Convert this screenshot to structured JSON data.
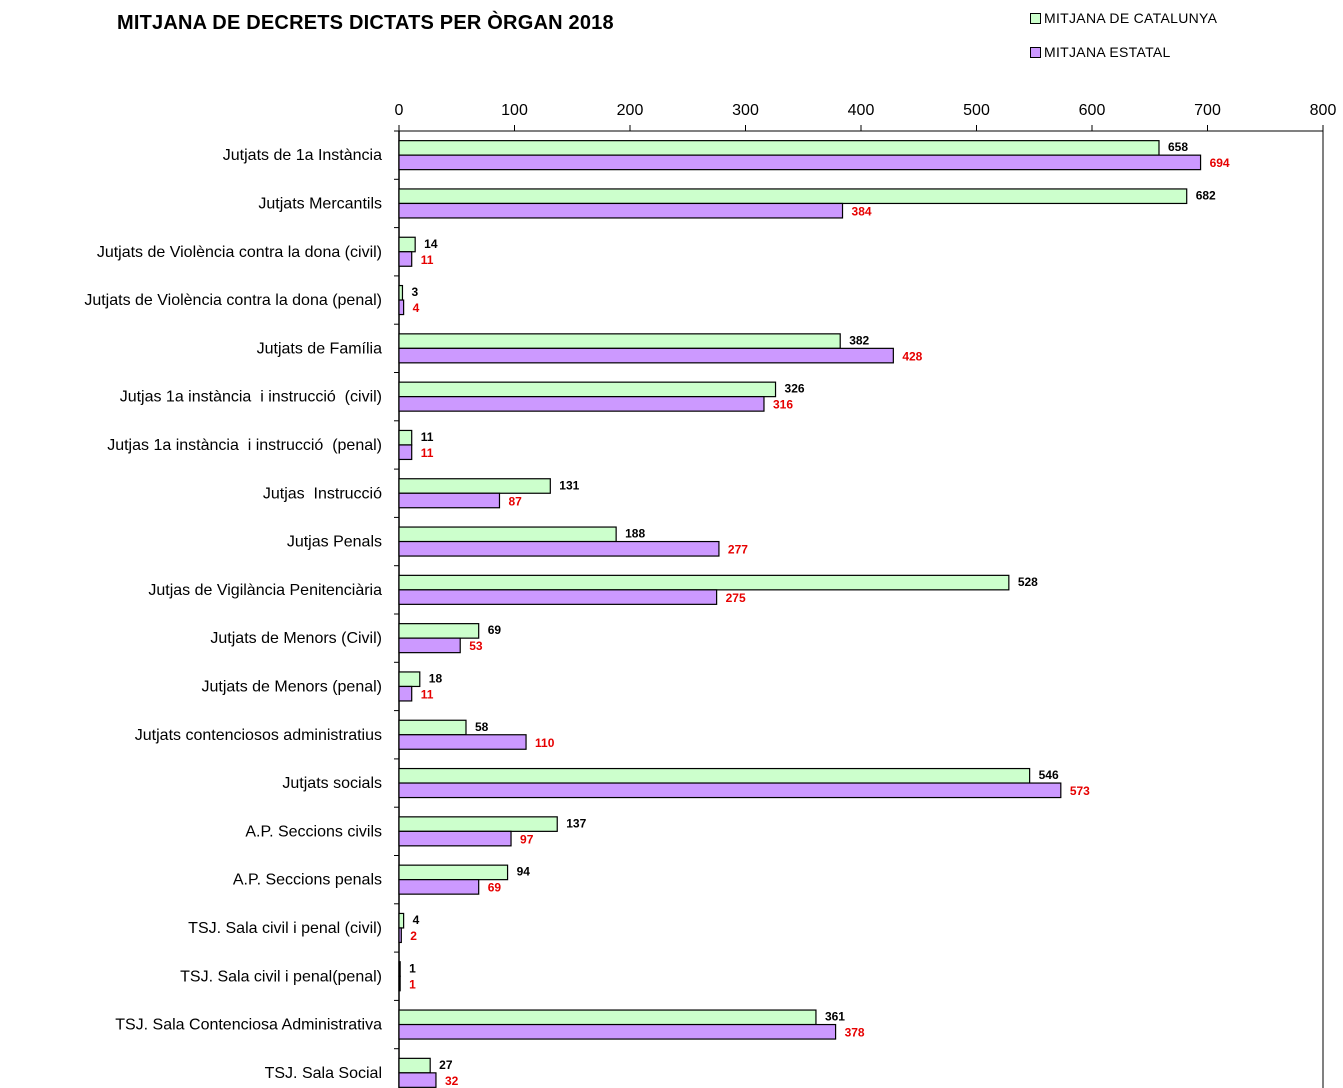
{
  "chart_data": {
    "type": "bar",
    "orientation": "horizontal",
    "title": "MITJANA DE DECRETS DICTATS PER ÒRGAN 2018",
    "xlim": [
      0,
      800
    ],
    "xticks": [
      "0",
      "100",
      "200",
      "300",
      "400",
      "500",
      "600",
      "700",
      "800"
    ],
    "legend_position": "top-right",
    "categories": [
      "Jutjats de 1a Instància",
      "Jutjats Mercantils",
      "Jutjats de Violència contra la dona (civil)",
      "Jutjats de Violència contra la dona (penal)",
      "Jutjats de Família",
      "Jutjas 1a instància  i instrucció  (civil)",
      "Jutjas 1a instància  i instrucció  (penal)",
      "Jutjas  Instrucció",
      "Jutjas Penals",
      "Jutjas de Vigilància Penitenciària",
      "Jutjats de Menors (Civil)",
      "Jutjats de Menors (penal)",
      "Jutjats contenciosos administratius",
      "Jutjats socials",
      "A.P. Seccions civils",
      "A.P. Seccions penals",
      "TSJ. Sala civil i penal (civil)",
      "TSJ. Sala civil i penal(penal)",
      "TSJ. Sala Contenciosa Administrativa",
      "TSJ. Sala Social"
    ],
    "series": [
      {
        "name": "MITJANA DE CATALUNYA",
        "color": "#ccffcc",
        "label_color": "#000000",
        "values": [
          658,
          682,
          14,
          3,
          382,
          326,
          11,
          131,
          188,
          528,
          69,
          18,
          58,
          546,
          137,
          94,
          4,
          1,
          361,
          27
        ]
      },
      {
        "name": "MITJANA ESTATAL",
        "color": "#cc99ff",
        "label_color": "#e60000",
        "values": [
          694,
          384,
          11,
          4,
          428,
          316,
          11,
          87,
          277,
          275,
          53,
          11,
          110,
          573,
          97,
          69,
          2,
          1,
          378,
          32
        ]
      }
    ]
  }
}
